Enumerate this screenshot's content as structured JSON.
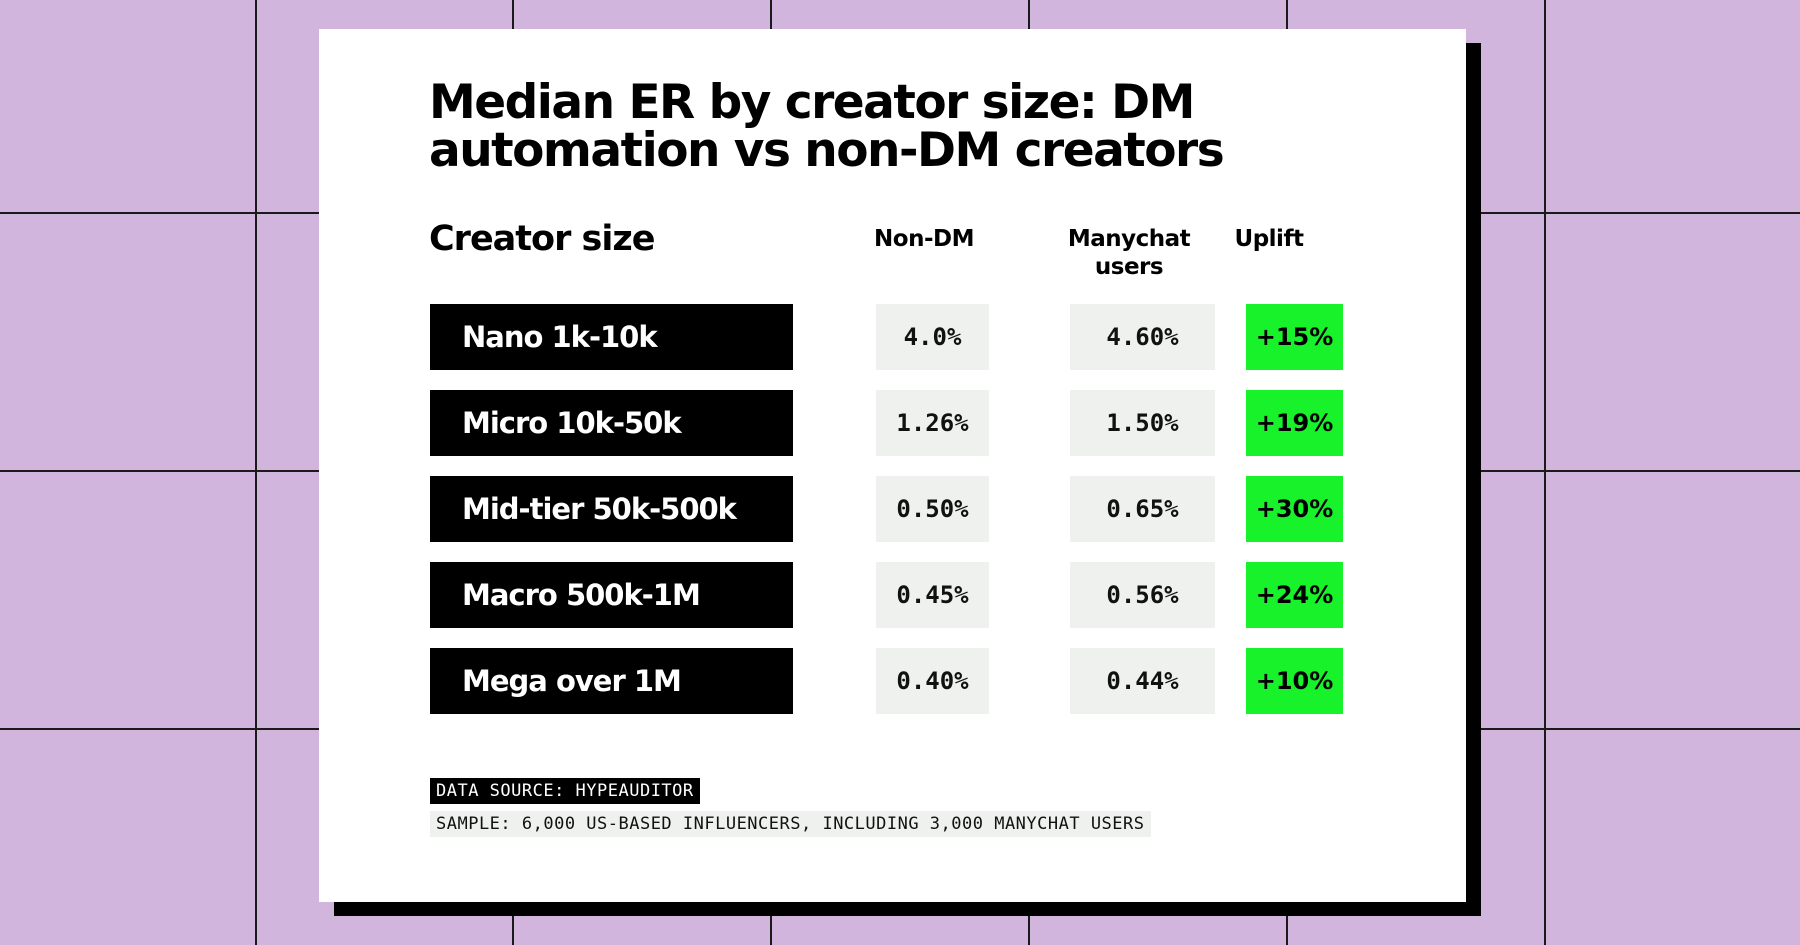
{
  "chart_data": {
    "type": "table",
    "title": "Median ER by creator size: DM automation vs non-DM creators",
    "columns": [
      "Creator size",
      "Non-DM",
      "Manychat users",
      "Uplift"
    ],
    "rows": [
      {
        "size": "Nano 1k-10k",
        "non_dm": "4.0%",
        "manychat": "4.60%",
        "uplift": "+15%"
      },
      {
        "size": "Micro 10k-50k",
        "non_dm": "1.26%",
        "manychat": "1.50%",
        "uplift": "+19%"
      },
      {
        "size": "Mid-tier 50k-500k",
        "non_dm": "0.50%",
        "manychat": "0.65%",
        "uplift": "+30%"
      },
      {
        "size": "Macro 500k-1M",
        "non_dm": "0.45%",
        "manychat": "0.56%",
        "uplift": "+24%"
      },
      {
        "size": "Mega over 1M",
        "non_dm": "0.40%",
        "manychat": "0.44%",
        "uplift": "+10%"
      }
    ],
    "source": "DATA SOURCE: HYPEAUDITOR",
    "sample": "SAMPLE: 6,000 US-BASED INFLUENCERS, INCLUDING 3,000 MANYCHAT USERS"
  },
  "colors": {
    "background": "#d2b5dc",
    "card": "#ffffff",
    "label_bg": "#000000",
    "value_bg": "#eef1ee",
    "uplift_bg": "#17f22b"
  }
}
